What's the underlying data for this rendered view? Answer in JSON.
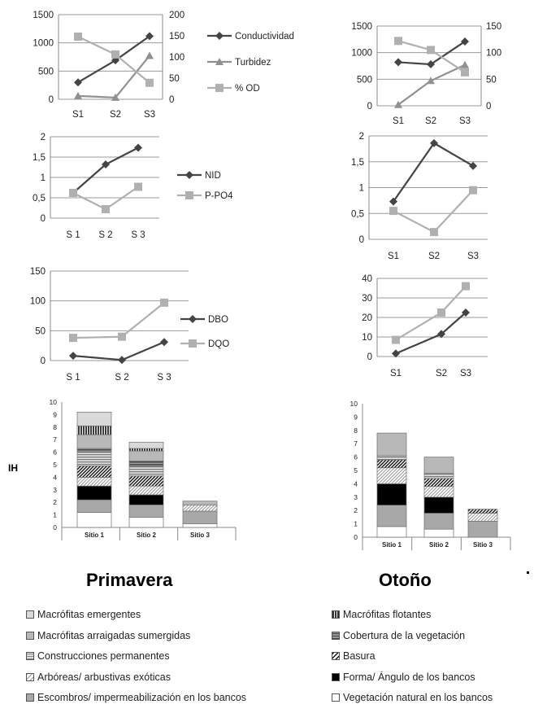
{
  "chart_data": [
    {
      "id": "spring-physchem",
      "type": "line",
      "categories": [
        "S1",
        "S2",
        "S3"
      ],
      "ylim_left": [
        0,
        1500
      ],
      "yticks_left": [
        "0",
        "500",
        "1000",
        "1500"
      ],
      "ylim_right": [
        0,
        200
      ],
      "yticks_right": [
        "0",
        "50",
        "100",
        "150",
        "200"
      ],
      "series": [
        {
          "name": "Conductividad",
          "axis": "left",
          "values": [
            300,
            690,
            1120
          ],
          "marker": "diamond",
          "color": "#444444"
        },
        {
          "name": "Turbidez",
          "axis": "right",
          "values": [
            8,
            4,
            103
          ],
          "marker": "triangle",
          "color": "#909090"
        },
        {
          "name": "% OD",
          "axis": "right",
          "values": [
            148,
            106,
            39
          ],
          "marker": "square",
          "color": "#b0b0b0"
        }
      ]
    },
    {
      "id": "autumn-physchem",
      "type": "line",
      "categories": [
        "S1",
        "S2",
        "S3"
      ],
      "ylim_left": [
        0,
        1500
      ],
      "yticks_left": [
        "0",
        "500",
        "1000",
        "1500"
      ],
      "ylim_right": [
        0,
        150
      ],
      "yticks_right": [
        "0",
        "50",
        "100",
        "150"
      ],
      "series": [
        {
          "name": "Conductividad",
          "axis": "left",
          "values": [
            820,
            780,
            1210
          ],
          "marker": "diamond",
          "color": "#444444"
        },
        {
          "name": "Turbidez",
          "axis": "right",
          "values": [
            2,
            47,
            77
          ],
          "marker": "triangle",
          "color": "#909090"
        },
        {
          "name": "% OD",
          "axis": "right",
          "values": [
            122,
            105,
            63
          ],
          "marker": "square",
          "color": "#b0b0b0"
        }
      ]
    },
    {
      "id": "spring-nutrients",
      "type": "line",
      "categories": [
        "S 1",
        "S 2",
        "S 3"
      ],
      "ylim": [
        0,
        2
      ],
      "yticks": [
        "0",
        "0,5",
        "1",
        "1,5",
        "2"
      ],
      "series": [
        {
          "name": "NID",
          "values": [
            0.62,
            1.32,
            1.73
          ],
          "marker": "diamond",
          "color": "#444444"
        },
        {
          "name": "P-PO4",
          "values": [
            0.62,
            0.22,
            0.77
          ],
          "marker": "square",
          "color": "#b0b0b0"
        }
      ]
    },
    {
      "id": "autumn-nutrients",
      "type": "line",
      "categories": [
        "S1",
        "S2",
        "S3"
      ],
      "ylim": [
        0,
        2
      ],
      "yticks": [
        "0",
        "0,5",
        "1",
        "1,5",
        "2"
      ],
      "series": [
        {
          "name": "NID",
          "values": [
            0.73,
            1.86,
            1.42
          ],
          "marker": "diamond",
          "color": "#444444"
        },
        {
          "name": "P-PO4",
          "values": [
            0.55,
            0.14,
            0.95
          ],
          "marker": "square",
          "color": "#b0b0b0"
        }
      ]
    },
    {
      "id": "spring-organic",
      "type": "line",
      "categories": [
        "S 1",
        "S 2",
        "S 3"
      ],
      "ylim": [
        0,
        150
      ],
      "yticks": [
        "0",
        "50",
        "100",
        "150"
      ],
      "series": [
        {
          "name": "DBO",
          "values": [
            8,
            1,
            31
          ],
          "marker": "diamond",
          "color": "#444444"
        },
        {
          "name": "DQO",
          "values": [
            38,
            40,
            97
          ],
          "marker": "square",
          "color": "#b0b0b0"
        }
      ]
    },
    {
      "id": "autumn-organic",
      "type": "line",
      "categories": [
        "S1",
        "S2",
        "S3"
      ],
      "ylim": [
        0,
        40
      ],
      "yticks": [
        "0",
        "10",
        "20",
        "30",
        "40"
      ],
      "series": [
        {
          "name": "DBO",
          "values": [
            1.5,
            11.5,
            22.5
          ],
          "marker": "diamond",
          "color": "#444444"
        },
        {
          "name": "DQO",
          "values": [
            8.5,
            22.5,
            36
          ],
          "marker": "square",
          "color": "#b0b0b0"
        }
      ]
    },
    {
      "id": "spring-ih",
      "type": "bar",
      "stacked": true,
      "title": "Primavera",
      "ylabel": "IH",
      "categories": [
        "Sitio 1",
        "Sitio 2",
        "Sitio 3"
      ],
      "ylim": [
        0,
        10
      ],
      "yticks": [
        "0",
        "1",
        "2",
        "3",
        "4",
        "5",
        "6",
        "7",
        "8",
        "9",
        "10"
      ],
      "series": [
        {
          "name": "Vegetación natural en los bancos",
          "values": [
            1.2,
            0.8,
            0.3
          ]
        },
        {
          "name": "Escombros/ impermeabilización en los bancos",
          "values": [
            1.0,
            1.0,
            1.0
          ]
        },
        {
          "name": "Forma/ Ángulo de los bancos",
          "values": [
            1.1,
            0.8,
            0
          ]
        },
        {
          "name": "Arbóreas/ arbustivas exóticas",
          "values": [
            0.7,
            0.7,
            0.5
          ]
        },
        {
          "name": "Basura",
          "values": [
            0.9,
            0.8,
            0
          ]
        },
        {
          "name": "Construcciones permanentes",
          "values": [
            1.1,
            0.8,
            0
          ]
        },
        {
          "name": "Cobertura de la vegetación",
          "values": [
            0.3,
            0.4,
            0
          ]
        },
        {
          "name": "Macrófitas arraigadas sumergidas",
          "values": [
            1.1,
            0.8,
            0.3
          ]
        },
        {
          "name": "Macrófitas flotantes",
          "values": [
            0.7,
            0.2,
            0
          ]
        },
        {
          "name": "Macrófitas emergentes",
          "values": [
            1.1,
            0.5,
            0
          ]
        }
      ]
    },
    {
      "id": "autumn-ih",
      "type": "bar",
      "stacked": true,
      "title": "Otoño",
      "categories": [
        "Sitio 1",
        "Sitio 2",
        "Sitio 3"
      ],
      "ylim": [
        0,
        10
      ],
      "yticks": [
        "0",
        "1",
        "2",
        "3",
        "4",
        "5",
        "6",
        "7",
        "8",
        "9",
        "10"
      ],
      "series": [
        {
          "name": "Vegetación natural en los bancos",
          "values": [
            0.8,
            0.6,
            0
          ]
        },
        {
          "name": "Escombros/ impermeabilización en los bancos",
          "values": [
            1.6,
            1.2,
            1.2
          ]
        },
        {
          "name": "Forma/ Ángulo de los bancos",
          "values": [
            1.6,
            1.2,
            0
          ]
        },
        {
          "name": "Arbóreas/ arbustivas exóticas",
          "values": [
            1.2,
            0.8,
            0.6
          ]
        },
        {
          "name": "Basura",
          "values": [
            0.6,
            0.6,
            0.3
          ]
        },
        {
          "name": "Construcciones permanentes",
          "values": [
            0.3,
            0.4,
            0
          ]
        },
        {
          "name": "Cobertura de la vegetación",
          "values": [
            0,
            0,
            0
          ]
        },
        {
          "name": "Macrófitas arraigadas sumergidas",
          "values": [
            1.7,
            1.2,
            0
          ]
        },
        {
          "name": "Macrófitas flotantes",
          "values": [
            0,
            0,
            0
          ]
        },
        {
          "name": "Macrófitas emergentes",
          "values": [
            0,
            0,
            0
          ]
        }
      ]
    }
  ],
  "legend": [
    {
      "label": "Macrófitas emergentes",
      "fill": "#d9d9d9",
      "pattern": "plain"
    },
    {
      "label": "Macrófitas flotantes",
      "fill": "#505050",
      "pattern": "vstripe"
    },
    {
      "label": "Macrófitas arraigadas sumergidas",
      "fill": "#b8b8b8",
      "pattern": "plain"
    },
    {
      "label": "Cobertura de la vegetación",
      "fill": "#6a6a6a",
      "pattern": "hstripe"
    },
    {
      "label": "Construcciones permanentes",
      "fill": "#c4c4c4",
      "pattern": "hstripe"
    },
    {
      "label": "Basura",
      "fill": "#ffffff",
      "pattern": "diagonal-dark"
    },
    {
      "label": "Arbóreas/ arbustivas exóticas",
      "fill": "#ffffff",
      "pattern": "diagonal-light"
    },
    {
      "label": "Forma/ Ángulo de los bancos",
      "fill": "#000000",
      "pattern": "plain"
    },
    {
      "label": "Escombros/ impermeabilización en los bancos",
      "fill": "#a8a8a8",
      "pattern": "plain"
    },
    {
      "label": "Vegetación natural en los bancos",
      "fill": "#ffffff",
      "pattern": "plain"
    }
  ]
}
